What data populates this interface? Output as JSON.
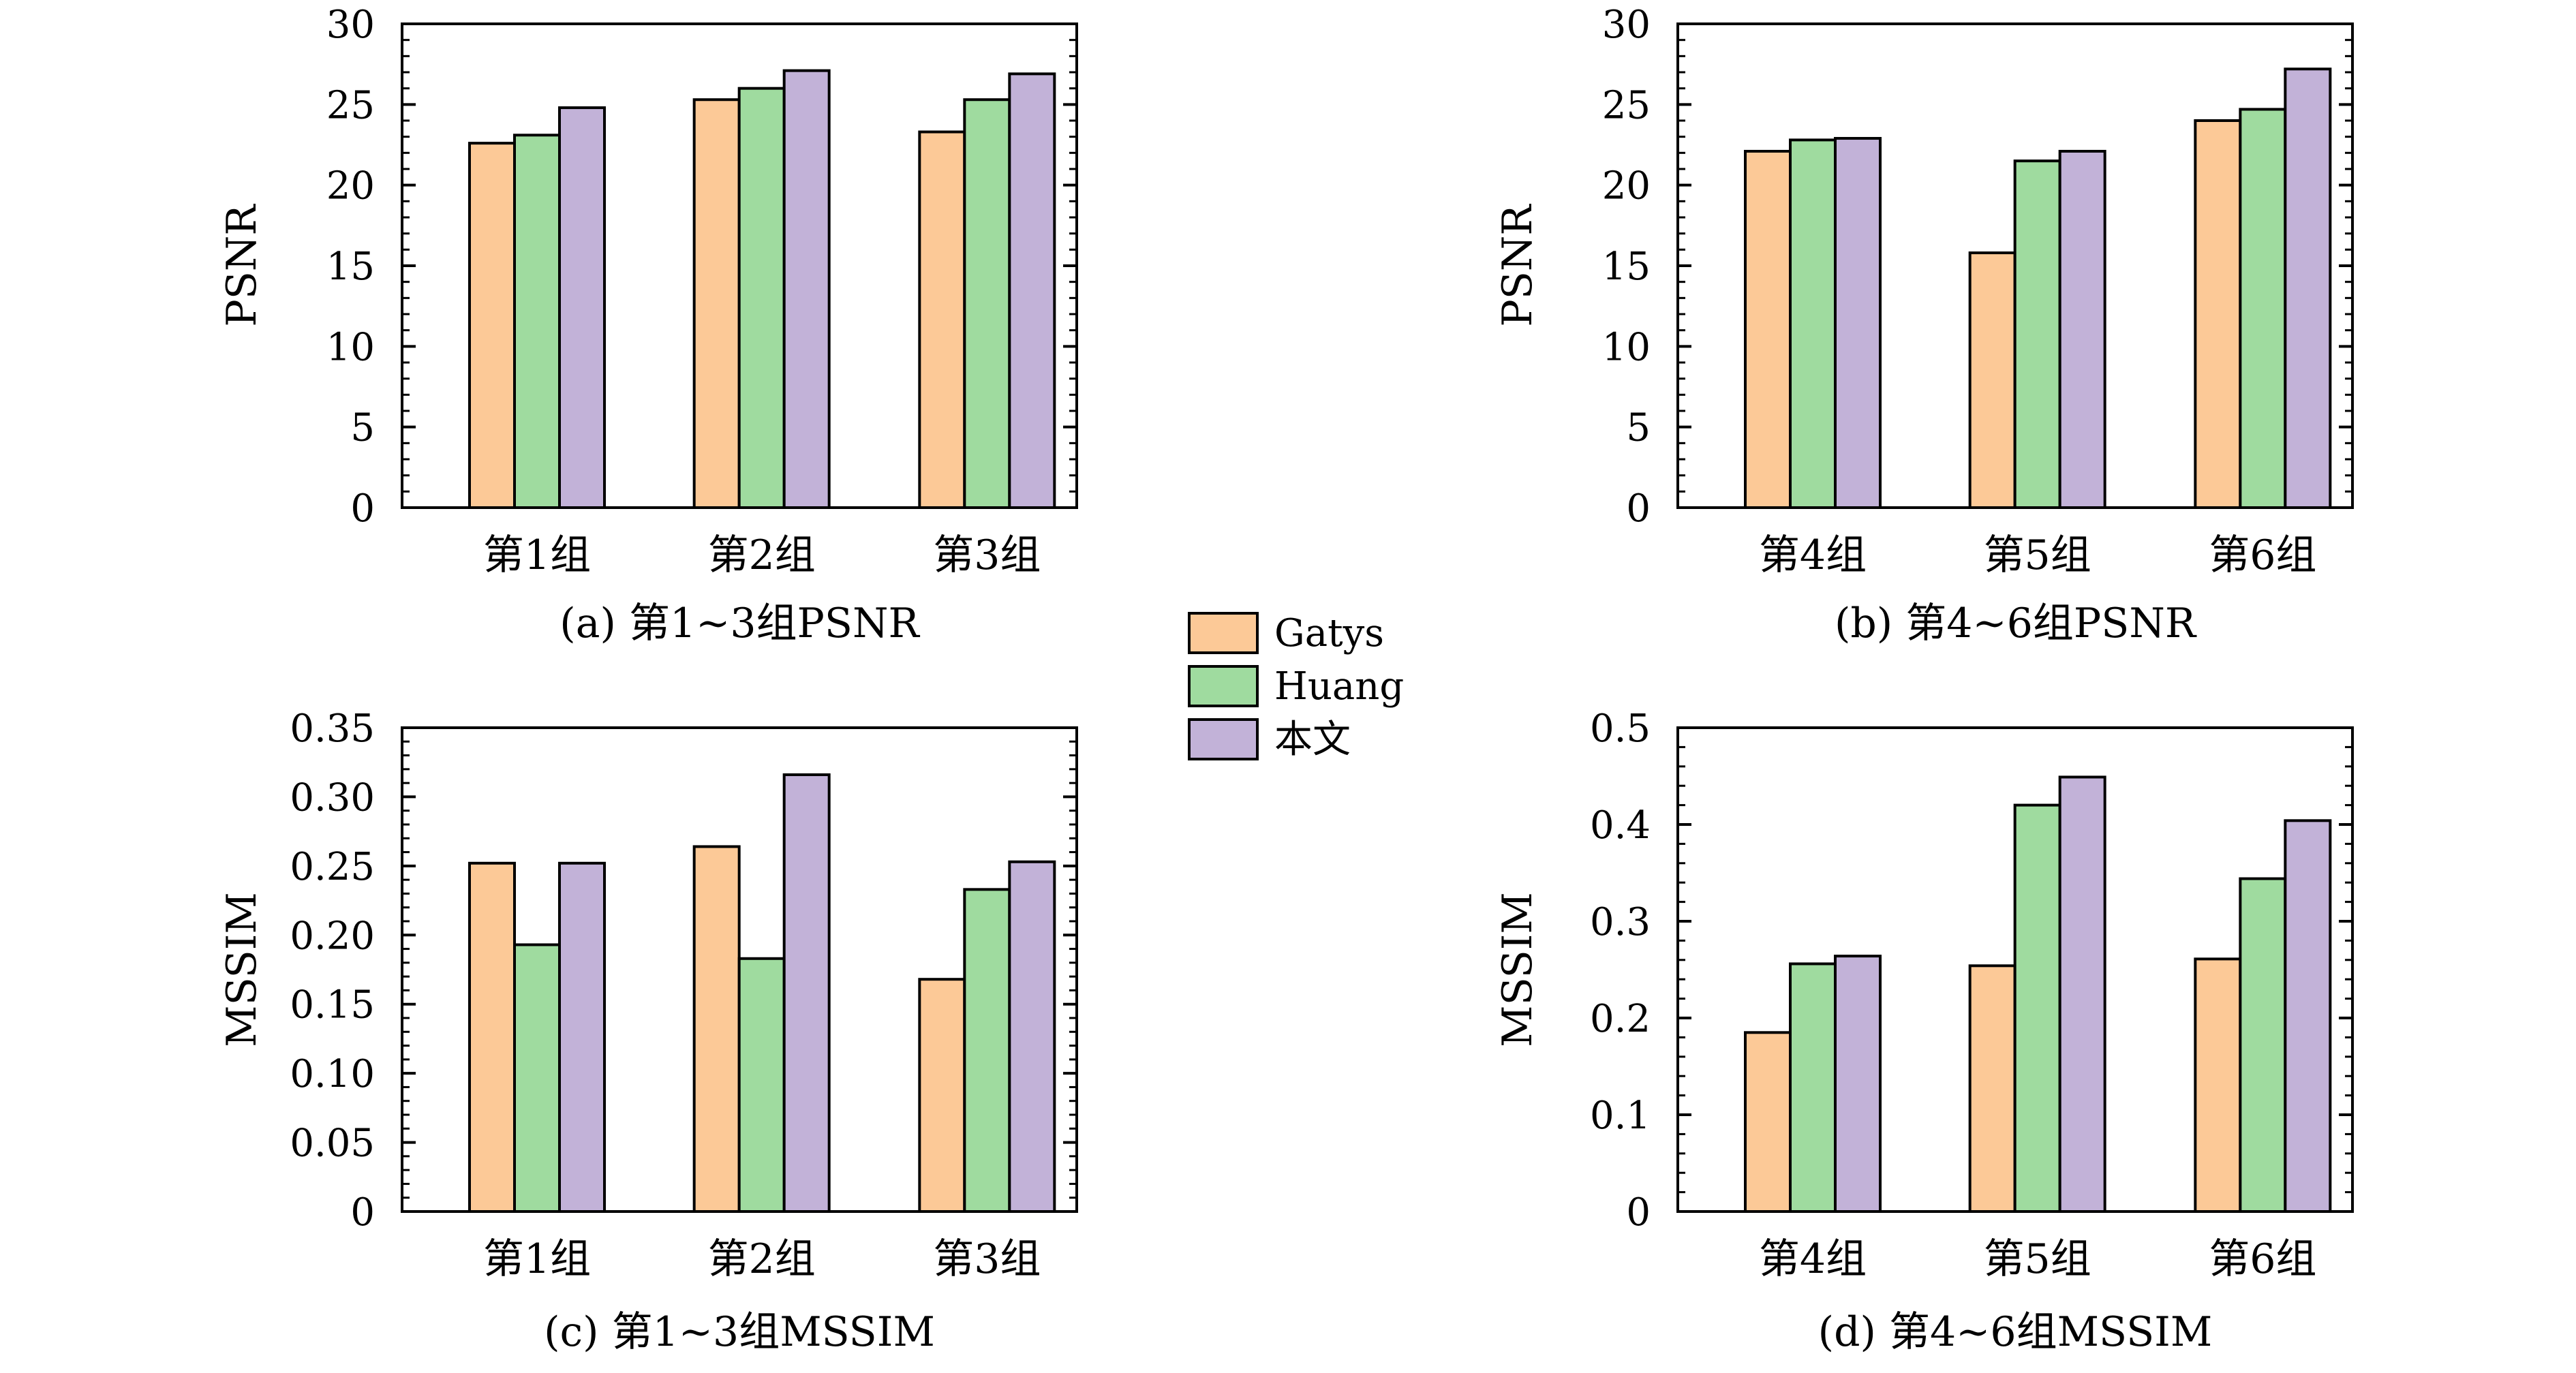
{
  "legend": [
    {
      "name": "Gatys",
      "color": "#FCC997"
    },
    {
      "name": "Huang",
      "color": "#9FDB9F"
    },
    {
      "name": "本文",
      "color": "#C2B2D8"
    }
  ],
  "chart_data": [
    {
      "type": "bar",
      "caption": "(a) 第1~3组PSNR",
      "ylabel": "PSNR",
      "ylim": [
        0,
        30
      ],
      "yticks": [
        "0",
        "5",
        "10",
        "15",
        "20",
        "25",
        "30"
      ],
      "categories": [
        "第1组",
        "第2组",
        "第3组"
      ],
      "series": [
        {
          "name": "Gatys",
          "values": [
            22.6,
            25.3,
            23.3
          ]
        },
        {
          "name": "Huang",
          "values": [
            23.1,
            26.0,
            25.3
          ]
        },
        {
          "name": "本文",
          "values": [
            24.8,
            27.1,
            26.9
          ]
        }
      ]
    },
    {
      "type": "bar",
      "caption": "(b) 第4~6组PSNR",
      "ylabel": "PSNR",
      "ylim": [
        0,
        30
      ],
      "yticks": [
        "0",
        "5",
        "10",
        "15",
        "20",
        "25",
        "30"
      ],
      "categories": [
        "第4组",
        "第5组",
        "第6组"
      ],
      "series": [
        {
          "name": "Gatys",
          "values": [
            22.1,
            15.8,
            24.0
          ]
        },
        {
          "name": "Huang",
          "values": [
            22.8,
            21.5,
            24.7
          ]
        },
        {
          "name": "本文",
          "values": [
            22.9,
            22.1,
            27.2
          ]
        }
      ]
    },
    {
      "type": "bar",
      "caption": "(c) 第1~3组MSSIM",
      "ylabel": "MSSIM",
      "ylim": [
        0,
        0.35
      ],
      "yticks": [
        "0",
        "0.05",
        "0.10",
        "0.15",
        "0.20",
        "0.25",
        "0.30",
        "0.35"
      ],
      "categories": [
        "第1组",
        "第2组",
        "第3组"
      ],
      "series": [
        {
          "name": "Gatys",
          "values": [
            0.252,
            0.264,
            0.168
          ]
        },
        {
          "name": "Huang",
          "values": [
            0.193,
            0.183,
            0.233
          ]
        },
        {
          "name": "本文",
          "values": [
            0.252,
            0.316,
            0.253
          ]
        }
      ]
    },
    {
      "type": "bar",
      "caption": "(d) 第4~6组MSSIM",
      "ylabel": "MSSIM",
      "ylim": [
        0,
        0.5
      ],
      "yticks": [
        "0",
        "0.1",
        "0.2",
        "0.3",
        "0.4",
        "0.5"
      ],
      "categories": [
        "第4组",
        "第5组",
        "第6组"
      ],
      "series": [
        {
          "name": "Gatys",
          "values": [
            0.185,
            0.254,
            0.261
          ]
        },
        {
          "name": "Huang",
          "values": [
            0.256,
            0.42,
            0.344
          ]
        },
        {
          "name": "本文",
          "values": [
            0.264,
            0.449,
            0.404
          ]
        }
      ]
    }
  ]
}
